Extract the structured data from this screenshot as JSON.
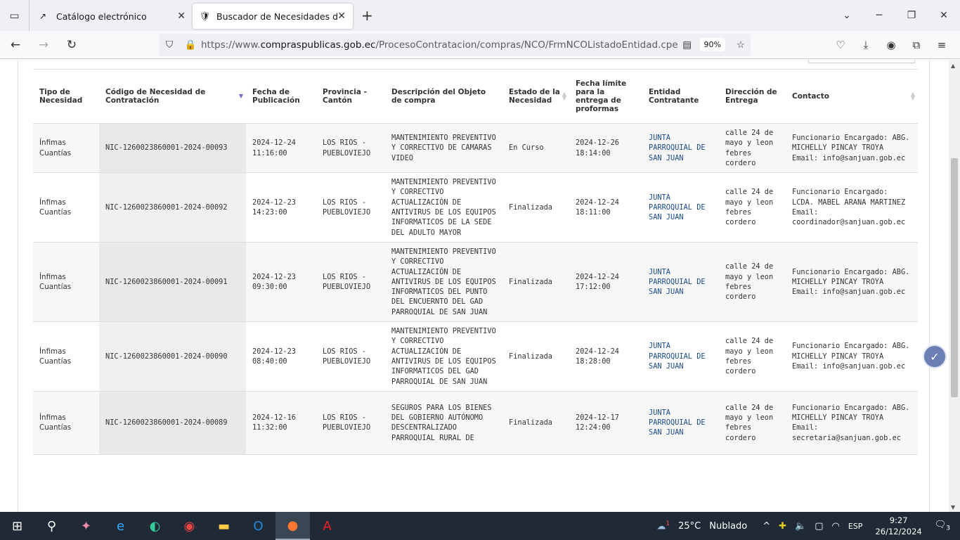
{
  "browser": {
    "tabs": [
      {
        "title": "Catálogo electrónico",
        "icon": "catalog-icon",
        "active": false
      },
      {
        "title": "Buscador de Necesidades de Contratación",
        "icon": "ecuador-shield-icon",
        "active": true
      }
    ],
    "url_prefix": "https://www.",
    "url_domain": "compraspublicas.gob.ec",
    "url_path": "/ProcesoContratacion/compras/NCO/FrmNCOListadoEntidad.cpe",
    "zoom": "90%"
  },
  "table": {
    "headers": [
      "Tipo de Necesidad",
      "Código de Necesidad de Contratación",
      "Fecha de Publicación",
      "Provincia - Cantón",
      "Descripción del Objeto de compra",
      "Estado de la Necesidad",
      "Fecha límite para la entrega de proformas",
      "Entidad Contratante",
      "Dirección de Entrega",
      "Contacto"
    ],
    "rows": [
      {
        "tipo": "Ínfimas Cuantías",
        "codigo": "NIC-1260023860001-2024-00093",
        "fecha": "2024-12-24 11:16:00",
        "provincia": "LOS RIOS - PUEBLOVIEJO",
        "descripcion": "MANTENIMIENTO PREVENTIVO Y CORRECTIVO DE CAMARAS VIDEO",
        "estado": "En Curso",
        "limite": "2024-12-26 18:14:00",
        "entidad": "JUNTA PARROQUIAL DE SAN JUAN",
        "direccion": "calle 24 de mayo y leon febres cordero",
        "contacto": "Funcionario Encargado: ABG. MICHELLY PINCAY TROYA Email: info@sanjuan.gob.ec"
      },
      {
        "tipo": "Ínfimas Cuantías",
        "codigo": "NIC-1260023860001-2024-00092",
        "fecha": "2024-12-23 14:23:00",
        "provincia": "LOS RIOS - PUEBLOVIEJO",
        "descripcion": "MANTENIMIENTO PREVENTIVO Y CORRECTIVO ACTUALIZACIÓN DE ANTIVIRUS DE LOS EQUIPOS INFORMATICOS DE LA SEDE DEL ADULTO MAYOR",
        "estado": "Finalizada",
        "limite": "2024-12-24 18:11:00",
        "entidad": "JUNTA PARROQUIAL DE SAN JUAN",
        "direccion": "calle 24 de mayo y leon febres cordero",
        "contacto": "Funcionario Encargado: LCDA. MABEL ARANA MARTINEZ Email: coordinador@sanjuan.gob.ec"
      },
      {
        "tipo": "Ínfimas Cuantías",
        "codigo": "NIC-1260023860001-2024-00091",
        "fecha": "2024-12-23 09:30:00",
        "provincia": "LOS RIOS - PUEBLOVIEJO",
        "descripcion": "MANTENIMIENTO PREVENTIVO Y CORRECTIVO ACTUALIZACIÓN DE ANTIVIRUS DE LOS EQUIPOS INFORMATICOS DEL PUNTO DEL ENCUERNTO DEL GAD PARROQUIAL DE SAN JUAN",
        "estado": "Finalizada",
        "limite": "2024-12-24 17:12:00",
        "entidad": "JUNTA PARROQUIAL DE SAN JUAN",
        "direccion": "calle 24 de mayo y leon febres cordero",
        "contacto": "Funcionario Encargado: ABG. MICHELLY PINCAY TROYA Email: info@sanjuan.gob.ec"
      },
      {
        "tipo": "Ínfimas Cuantías",
        "codigo": "NIC-1260023860001-2024-00090",
        "fecha": "2024-12-23 08:40:00",
        "provincia": "LOS RIOS - PUEBLOVIEJO",
        "descripcion": "MANTENIMIENTO PREVENTIVO Y CORRECTIVO ACTUALIZACIÓN DE ANTIVIRUS DE LOS EQUIPOS INFORMATICOS DEL GAD PARROQUIAL DE SAN JUAN",
        "estado": "Finalizada",
        "limite": "2024-12-24 18:28:00",
        "entidad": "JUNTA PARROQUIAL DE SAN JUAN",
        "direccion": "calle 24 de mayo y leon febres cordero",
        "contacto": "Funcionario Encargado: ABG. MICHELLY PINCAY TROYA Email: info@sanjuan.gob.ec"
      },
      {
        "tipo": "Ínfimas Cuantías",
        "codigo": "NIC-1260023860001-2024-00089",
        "fecha": "2024-12-16 11:32:00",
        "provincia": "LOS RIOS - PUEBLOVIEJO",
        "descripcion": "SEGUROS PARA LOS BIENES DEL GOBIERNO AUTÓNOMO DESCENTRALIZADO PARROQUIAL RURAL DE",
        "estado": "Finalizada",
        "limite": "2024-12-17 12:24:00",
        "entidad": "JUNTA PARROQUIAL DE SAN JUAN",
        "direccion": "calle 24 de mayo y leon febres cordero",
        "contacto": "Funcionario Encargado: ABG. MICHELLY PINCAY TROYA Email: secretaria@sanjuan.gob.ec"
      }
    ]
  },
  "taskbar": {
    "weather_temp": "25°C",
    "weather_text": "Nublado",
    "weather_badge": "1",
    "language": "ESP",
    "time": "9:27",
    "date": "26/12/2024",
    "notifications": "3"
  }
}
